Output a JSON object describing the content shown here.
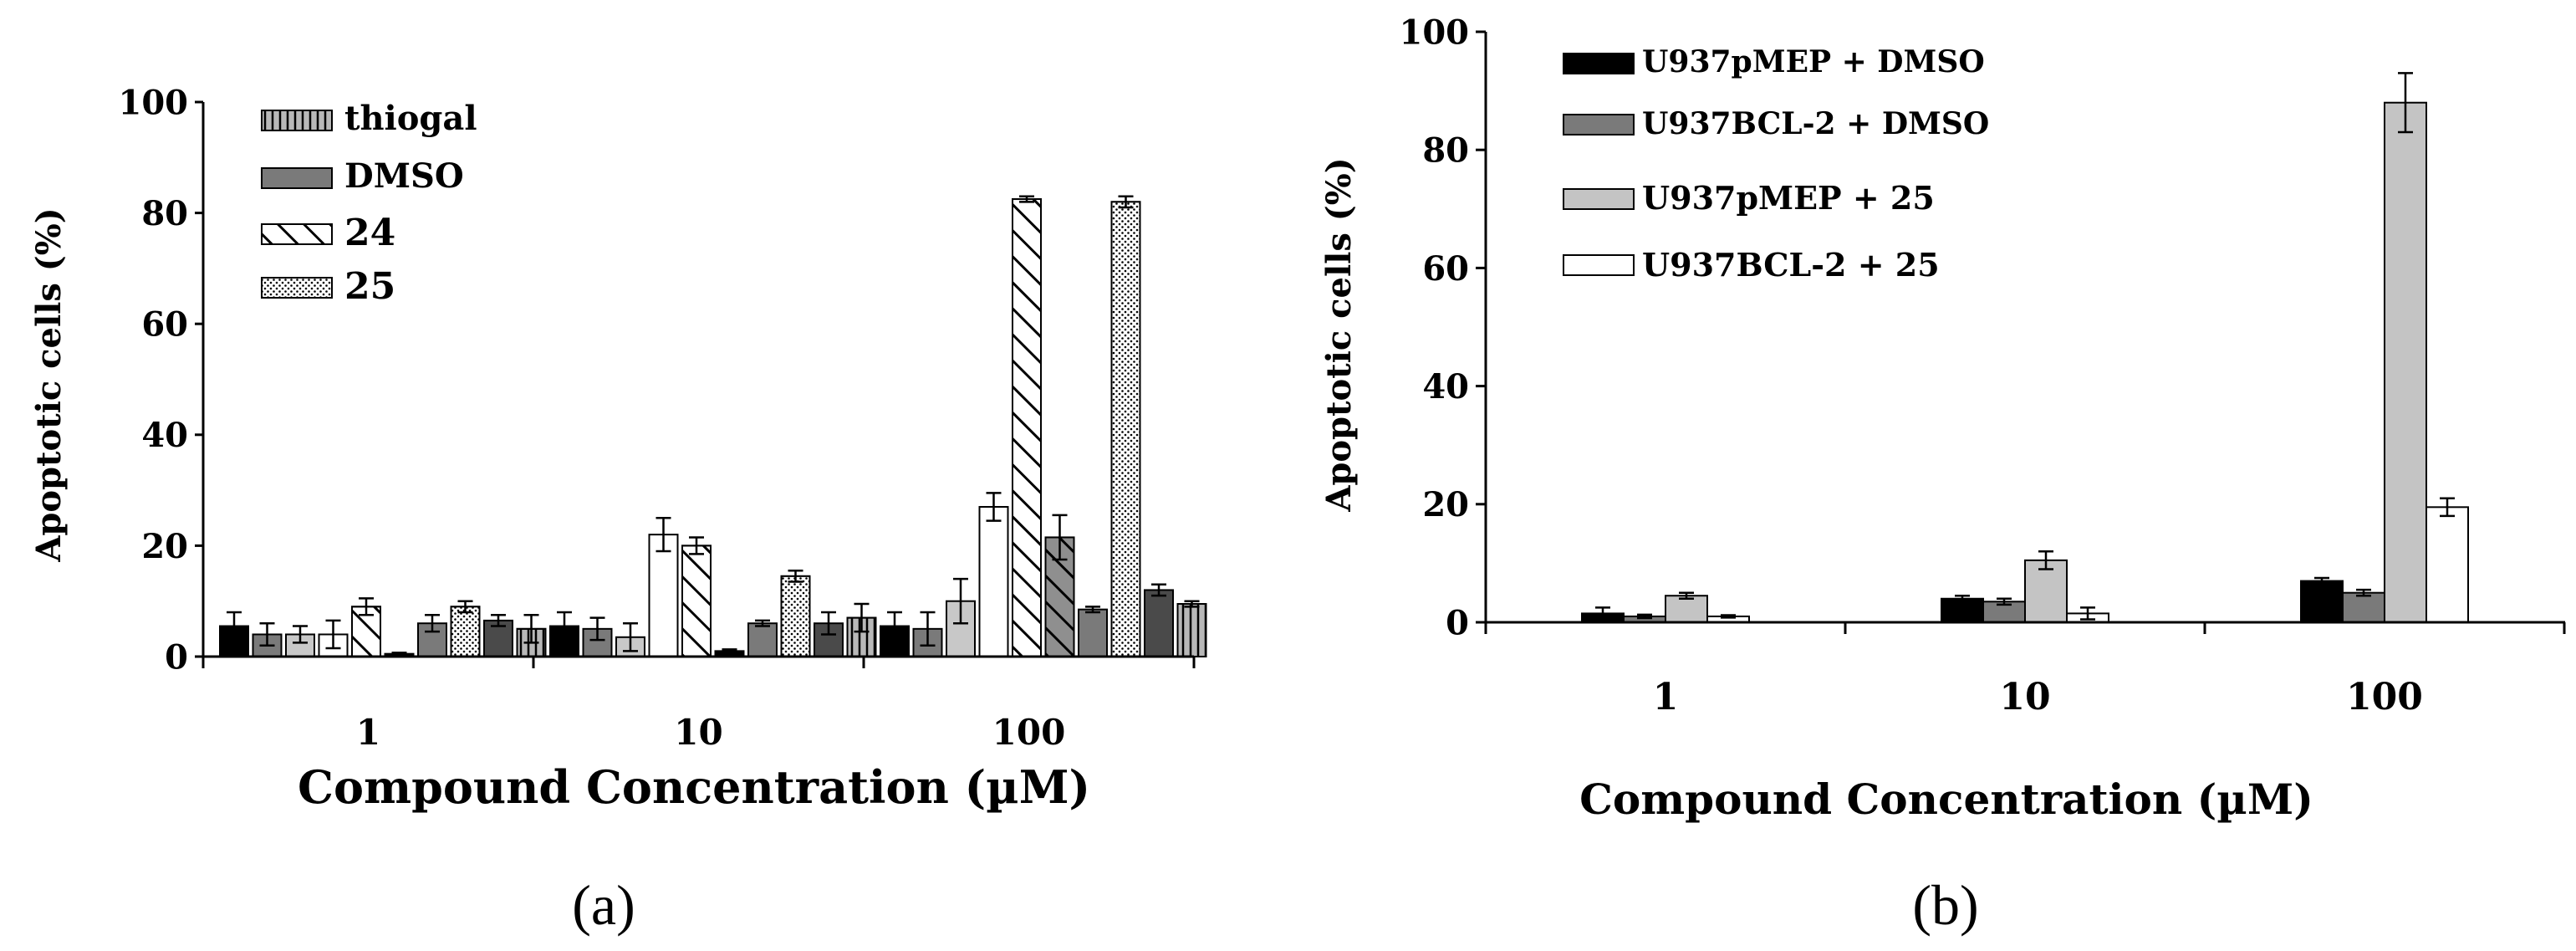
{
  "chart_data": [
    {
      "id": "a",
      "type": "bar",
      "panel_label": "(a)",
      "title": "",
      "xlabel": "Compound Concentration (µM)",
      "ylabel": "Apoptotic cells (%)",
      "ylim": [
        0,
        100
      ],
      "yticks": [
        0,
        20,
        40,
        60,
        80,
        100
      ],
      "categories": [
        "1",
        "10",
        "100"
      ],
      "legend": [
        "thiogal",
        "DMSO",
        "24",
        "25"
      ],
      "bars": [
        [
          {
            "value": 5.5,
            "error": 2.5,
            "fill": "#000000",
            "pattern": "solid"
          },
          {
            "value": 4.0,
            "error": 2.0,
            "fill": "#7a7a7a",
            "pattern": "solid"
          },
          {
            "value": 4.0,
            "error": 1.5,
            "fill": "#c8c8c8",
            "pattern": "solid"
          },
          {
            "value": 4.0,
            "error": 2.5,
            "fill": "#ffffff",
            "pattern": "solid"
          },
          {
            "value": 9.0,
            "error": 1.5,
            "fill": "#ffffff",
            "pattern": "hatch"
          },
          {
            "value": 0.5,
            "error": 0.2,
            "fill": "#000000",
            "pattern": "solid"
          },
          {
            "value": 6.0,
            "error": 1.5,
            "fill": "#7a7a7a",
            "pattern": "solid"
          },
          {
            "value": 9.0,
            "error": 1.0,
            "fill": "#ffffff",
            "pattern": "dots"
          },
          {
            "value": 6.5,
            "error": 1.0,
            "fill": "#4a4a4a",
            "pattern": "solid"
          },
          {
            "value": 5.0,
            "error": 2.5,
            "fill": "#b8b8b8",
            "pattern": "vlines"
          }
        ],
        [
          {
            "value": 5.5,
            "error": 2.5,
            "fill": "#000000",
            "pattern": "solid"
          },
          {
            "value": 5.0,
            "error": 2.0,
            "fill": "#7a7a7a",
            "pattern": "solid"
          },
          {
            "value": 3.5,
            "error": 2.5,
            "fill": "#c8c8c8",
            "pattern": "solid"
          },
          {
            "value": 22.0,
            "error": 3.0,
            "fill": "#ffffff",
            "pattern": "solid"
          },
          {
            "value": 20.0,
            "error": 1.5,
            "fill": "#ffffff",
            "pattern": "hatch"
          },
          {
            "value": 1.0,
            "error": 0.3,
            "fill": "#000000",
            "pattern": "solid"
          },
          {
            "value": 6.0,
            "error": 0.5,
            "fill": "#7a7a7a",
            "pattern": "solid"
          },
          {
            "value": 14.5,
            "error": 1.0,
            "fill": "#ffffff",
            "pattern": "dots"
          },
          {
            "value": 6.0,
            "error": 2.0,
            "fill": "#4a4a4a",
            "pattern": "solid"
          },
          {
            "value": 7.0,
            "error": 2.5,
            "fill": "#b8b8b8",
            "pattern": "vlines"
          }
        ],
        [
          {
            "value": 5.5,
            "error": 2.5,
            "fill": "#000000",
            "pattern": "solid"
          },
          {
            "value": 5.0,
            "error": 3.0,
            "fill": "#7a7a7a",
            "pattern": "solid"
          },
          {
            "value": 10.0,
            "error": 4.0,
            "fill": "#c8c8c8",
            "pattern": "solid"
          },
          {
            "value": 27.0,
            "error": 2.5,
            "fill": "#ffffff",
            "pattern": "solid"
          },
          {
            "value": 82.5,
            "error": 0.5,
            "fill": "#ffffff",
            "pattern": "hatch"
          },
          {
            "value": 21.5,
            "error": 4.0,
            "fill": "#8f8f8f",
            "pattern": "hatch"
          },
          {
            "value": 8.5,
            "error": 0.5,
            "fill": "#7a7a7a",
            "pattern": "solid"
          },
          {
            "value": 82.0,
            "error": 1.0,
            "fill": "#ffffff",
            "pattern": "dots"
          },
          {
            "value": 12.0,
            "error": 1.0,
            "fill": "#4a4a4a",
            "pattern": "solid"
          },
          {
            "value": 9.5,
            "error": 0.5,
            "fill": "#b8b8b8",
            "pattern": "vlines"
          }
        ]
      ]
    },
    {
      "id": "b",
      "type": "bar",
      "panel_label": "(b)",
      "title": "",
      "xlabel": "Compound Concentration (µM)",
      "ylabel": "Apoptotic cells (%)",
      "ylim": [
        0,
        100
      ],
      "yticks": [
        0,
        20,
        40,
        60,
        80,
        100
      ],
      "categories": [
        "1",
        "10",
        "100"
      ],
      "series": [
        {
          "name": "U937pMEP + DMSO",
          "color": "#000000",
          "values": [
            1.5,
            4.0,
            7.0
          ],
          "errors": [
            1.0,
            0.5,
            0.5
          ]
        },
        {
          "name": "U937BCL-2 + DMSO",
          "color": "#7a7a7a",
          "values": [
            1.0,
            3.5,
            5.0
          ],
          "errors": [
            0.3,
            0.5,
            0.5
          ]
        },
        {
          "name": "U937pMEP + 25",
          "color": "#c4c4c4",
          "values": [
            4.5,
            10.5,
            88.0
          ],
          "errors": [
            0.5,
            1.5,
            5.0
          ]
        },
        {
          "name": "U937BCL-2 + 25",
          "color": "#ffffff",
          "values": [
            1.0,
            1.5,
            19.5
          ],
          "errors": [
            0.2,
            1.0,
            1.5
          ]
        }
      ]
    }
  ]
}
